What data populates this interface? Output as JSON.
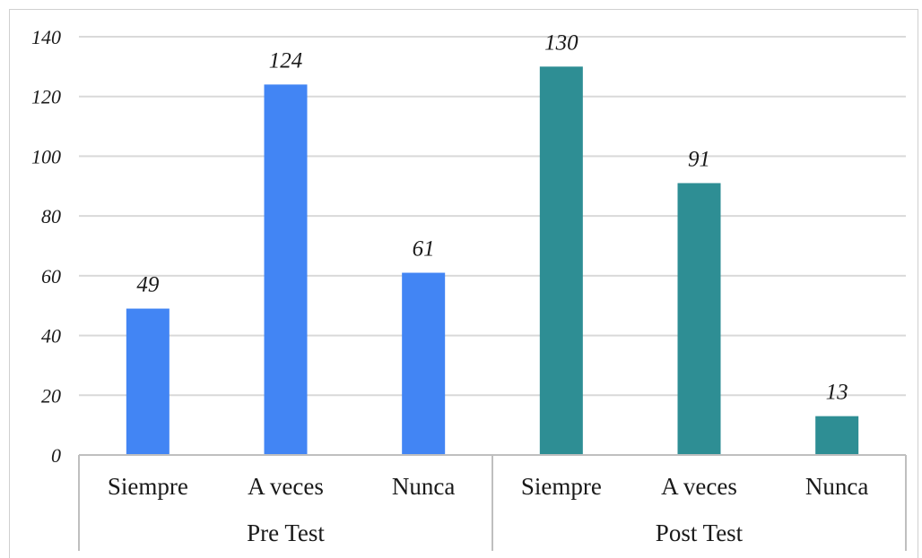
{
  "chart_data": {
    "type": "bar",
    "groups": [
      "Pre Test",
      "Post Test"
    ],
    "categories": [
      "Siempre",
      "A veces",
      "Nunca",
      "Siempre",
      "A veces",
      "Nunca"
    ],
    "group_index": [
      0,
      0,
      0,
      1,
      1,
      1
    ],
    "values": [
      49,
      124,
      61,
      130,
      91,
      13
    ],
    "data_labels": [
      "49",
      "124",
      "61",
      "130",
      "91",
      "13"
    ],
    "ylim": [
      0,
      140
    ],
    "yticks": [
      "0",
      "20",
      "40",
      "60",
      "80",
      "100",
      "120",
      "140"
    ],
    "grid": true,
    "colors": {
      "pre": "#4285f4",
      "post": "#2e8e94",
      "grid": "#d9d9d9",
      "axis": "#bfbfbf"
    }
  }
}
